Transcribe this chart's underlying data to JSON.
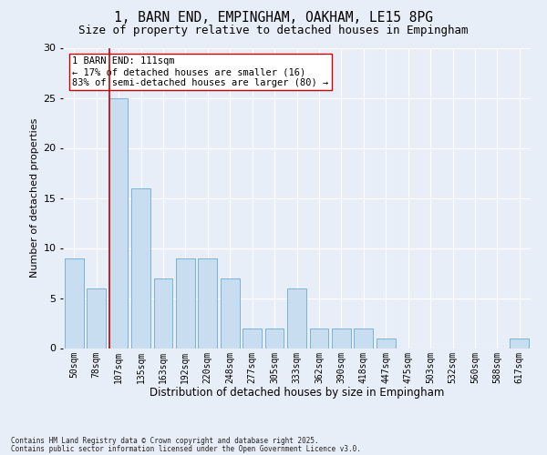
{
  "title1": "1, BARN END, EMPINGHAM, OAKHAM, LE15 8PG",
  "title2": "Size of property relative to detached houses in Empingham",
  "xlabel": "Distribution of detached houses by size in Empingham",
  "ylabel": "Number of detached properties",
  "categories": [
    "50sqm",
    "78sqm",
    "107sqm",
    "135sqm",
    "163sqm",
    "192sqm",
    "220sqm",
    "248sqm",
    "277sqm",
    "305sqm",
    "333sqm",
    "362sqm",
    "390sqm",
    "418sqm",
    "447sqm",
    "475sqm",
    "503sqm",
    "532sqm",
    "560sqm",
    "588sqm",
    "617sqm"
  ],
  "values": [
    9,
    6,
    25,
    16,
    7,
    9,
    9,
    7,
    2,
    2,
    6,
    2,
    2,
    2,
    1,
    0,
    0,
    0,
    0,
    0,
    1
  ],
  "bar_color": "#c9ddf0",
  "bar_edge_color": "#6aaad4",
  "highlight_index": 2,
  "highlight_line_color": "#cc0000",
  "ylim": [
    0,
    30
  ],
  "yticks": [
    0,
    5,
    10,
    15,
    20,
    25,
    30
  ],
  "annotation_text": "1 BARN END: 111sqm\n← 17% of detached houses are smaller (16)\n83% of semi-detached houses are larger (80) →",
  "annotation_box_color": "#ffffff",
  "annotation_box_edge_color": "#cc0000",
  "footer1": "Contains HM Land Registry data © Crown copyright and database right 2025.",
  "footer2": "Contains public sector information licensed under the Open Government Licence v3.0.",
  "background_color": "#e8eef8",
  "grid_color": "#ffffff",
  "title_fontsize": 10.5,
  "subtitle_fontsize": 9,
  "tick_fontsize": 7,
  "ylabel_fontsize": 8,
  "xlabel_fontsize": 8.5,
  "annotation_fontsize": 7.5,
  "footer_fontsize": 5.5
}
